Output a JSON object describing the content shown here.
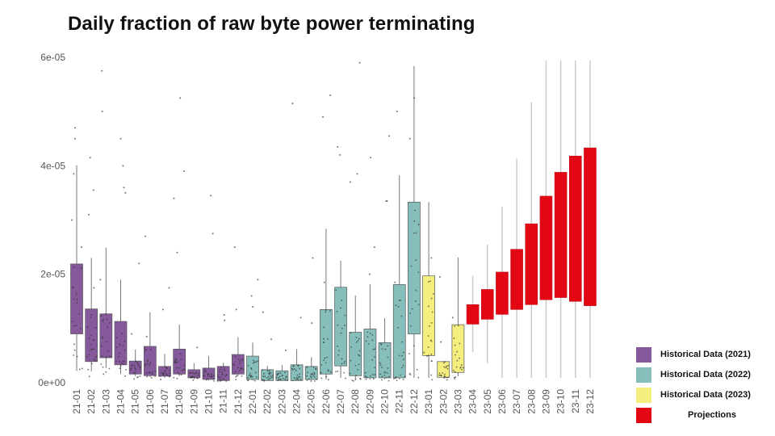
{
  "chart_data": {
    "type": "boxplot",
    "title": "Daily fraction of raw byte power terminating",
    "xlabel": "",
    "ylabel": "",
    "ylim": [
      0,
      6e-05
    ],
    "yticks": [
      {
        "value": 0,
        "label": "0e+00"
      },
      {
        "value": 2e-05,
        "label": "2e-05"
      },
      {
        "value": 4e-05,
        "label": "4e-05"
      },
      {
        "value": 6e-05,
        "label": "6e-05"
      }
    ],
    "grid": false,
    "legend_position": "bottom-right",
    "colors": {
      "h2021": "#85599b",
      "h2022": "#85bebb",
      "h2023": "#f4ee7e",
      "proj": "#e30613"
    },
    "legend": [
      {
        "key": "h2021",
        "label": "Historical Data (2021)"
      },
      {
        "key": "h2022",
        "label": "Historical Data (2022)"
      },
      {
        "key": "h2023",
        "label": "Historical Data (2023)"
      },
      {
        "key": "proj",
        "label": "Projections"
      }
    ],
    "categories": [
      "21-01",
      "21-02",
      "21-03",
      "21-04",
      "21-05",
      "21-06",
      "21-07",
      "21-08",
      "21-09",
      "21-10",
      "21-11",
      "21-12",
      "22-01",
      "22-02",
      "22-03",
      "22-04",
      "22-05",
      "22-06",
      "22-07",
      "22-08",
      "22-09",
      "22-10",
      "22-11",
      "22-12",
      "23-01",
      "23-02",
      "23-03",
      "23-04",
      "23-05",
      "23-06",
      "23-07",
      "23-08",
      "23-09",
      "23-10",
      "23-11",
      "23-12"
    ],
    "series": [
      {
        "category": "21-01",
        "group": "h2021",
        "low": 2.2e-06,
        "q1": 9e-06,
        "q3": 2.19e-05,
        "high": 4.01e-05,
        "outliers": [
          4.7e-05,
          4.5e-05,
          3e-05,
          2.5e-05,
          3.85e-05
        ]
      },
      {
        "category": "21-02",
        "group": "h2021",
        "low": 2.1e-06,
        "q1": 3.9e-06,
        "q3": 1.36e-05,
        "high": 2.3e-05,
        "outliers": [
          4.15e-05,
          3.55e-05,
          1.75e-05,
          3.1e-05
        ]
      },
      {
        "category": "21-03",
        "group": "h2021",
        "low": 2.7e-06,
        "q1": 4.6e-06,
        "q3": 1.27e-05,
        "high": 2.49e-05,
        "outliers": [
          5.75e-05,
          5e-05,
          1.9e-05
        ]
      },
      {
        "category": "21-04",
        "group": "h2021",
        "low": 1.6e-06,
        "q1": 3.3e-06,
        "q3": 1.13e-05,
        "high": 1.9e-05,
        "outliers": [
          4.5e-05,
          4e-05,
          3.6e-05,
          3.5e-05
        ]
      },
      {
        "category": "21-05",
        "group": "h2021",
        "low": 1.2e-06,
        "q1": 1.6e-06,
        "q3": 4e-06,
        "high": 6.1e-06,
        "outliers": [
          2.2e-05,
          9e-06
        ]
      },
      {
        "category": "21-06",
        "group": "h2021",
        "low": 1e-06,
        "q1": 1.3e-06,
        "q3": 6.7e-06,
        "high": 1.3e-05,
        "outliers": [
          2.7e-05,
          8.5e-06
        ]
      },
      {
        "category": "21-07",
        "group": "h2021",
        "low": 9e-07,
        "q1": 1.2e-06,
        "q3": 3e-06,
        "high": 5.3e-06,
        "outliers": [
          1.75e-05,
          1.35e-05
        ]
      },
      {
        "category": "21-08",
        "group": "h2021",
        "low": 1.2e-06,
        "q1": 1.6e-06,
        "q3": 6.2e-06,
        "high": 1.07e-05,
        "outliers": [
          5.25e-05,
          3.9e-05,
          3.4e-05,
          2.4e-05
        ]
      },
      {
        "category": "21-09",
        "group": "h2021",
        "low": 6e-07,
        "q1": 9e-07,
        "q3": 2.4e-06,
        "high": 3.6e-06,
        "outliers": [
          6.5e-06
        ]
      },
      {
        "category": "21-10",
        "group": "h2021",
        "low": 4e-07,
        "q1": 6e-07,
        "q3": 2.7e-06,
        "high": 4.9e-06,
        "outliers": [
          3.45e-05,
          2.75e-05
        ]
      },
      {
        "category": "21-11",
        "group": "h2021",
        "low": 4e-07,
        "q1": 4e-07,
        "q3": 3e-06,
        "high": 3.7e-06,
        "outliers": [
          1.25e-05,
          1.15e-05
        ]
      },
      {
        "category": "21-12",
        "group": "h2021",
        "low": 1.2e-06,
        "q1": 1.6e-06,
        "q3": 5.2e-06,
        "high": 8.4e-06,
        "outliers": [
          2.5e-05,
          1.35e-05
        ]
      },
      {
        "category": "22-01",
        "group": "h2022",
        "low": 4e-07,
        "q1": 6e-07,
        "q3": 4.9e-06,
        "high": 7.4e-06,
        "outliers": [
          1.9e-05,
          1.6e-05,
          1.4e-05
        ]
      },
      {
        "category": "22-02",
        "group": "h2022",
        "low": 4e-07,
        "q1": 4e-07,
        "q3": 2.4e-06,
        "high": 3.1e-06,
        "outliers": [
          1.3e-05,
          8e-06
        ]
      },
      {
        "category": "22-03",
        "group": "h2022",
        "low": 4e-07,
        "q1": 4e-07,
        "q3": 2.2e-06,
        "high": 3.3e-06,
        "outliers": [
          6e-06
        ]
      },
      {
        "category": "22-04",
        "group": "h2022",
        "low": 4e-07,
        "q1": 4e-07,
        "q3": 3.3e-06,
        "high": 6.2e-06,
        "outliers": [
          5.15e-05,
          1.2e-05
        ]
      },
      {
        "category": "22-05",
        "group": "h2022",
        "low": 4e-07,
        "q1": 6e-07,
        "q3": 3e-06,
        "high": 4.7e-06,
        "outliers": [
          2.3e-05,
          1.1e-05
        ]
      },
      {
        "category": "22-06",
        "group": "h2022",
        "low": 6e-07,
        "q1": 1.6e-06,
        "q3": 1.35e-05,
        "high": 2.84e-05,
        "outliers": [
          5.3e-05,
          4.9e-05,
          1.85e-05
        ]
      },
      {
        "category": "22-07",
        "group": "h2022",
        "low": 9e-07,
        "q1": 3.1e-06,
        "q3": 1.76e-05,
        "high": 2.25e-05,
        "outliers": [
          4.35e-05,
          4.2e-05
        ]
      },
      {
        "category": "22-08",
        "group": "h2022",
        "low": 6e-07,
        "q1": 1.3e-06,
        "q3": 9.3e-06,
        "high": 1.61e-05,
        "outliers": [
          5.9e-05,
          3.7e-05,
          3.85e-05
        ]
      },
      {
        "category": "22-09",
        "group": "h2022",
        "low": 6e-07,
        "q1": 9e-07,
        "q3": 9.9e-06,
        "high": 1.82e-05,
        "outliers": [
          4.15e-05,
          2.5e-05,
          2e-05
        ]
      },
      {
        "category": "22-10",
        "group": "h2022",
        "low": 6e-07,
        "q1": 9e-07,
        "q3": 7.4e-06,
        "high": 1.19e-05,
        "outliers": [
          4.55e-05,
          3.35e-05,
          3.35e-05
        ]
      },
      {
        "category": "22-11",
        "group": "h2022",
        "low": 6e-07,
        "q1": 9e-07,
        "q3": 1.81e-05,
        "high": 3.82e-05,
        "outliers": [
          5e-05,
          1.85e-05
        ]
      },
      {
        "category": "22-12",
        "group": "h2022",
        "low": 9e-07,
        "q1": 9e-06,
        "q3": 3.33e-05,
        "high": 5.84e-05,
        "outliers": [
          5.25e-05,
          4.5e-05
        ]
      },
      {
        "category": "23-01",
        "group": "h2023",
        "low": 9e-07,
        "q1": 5e-06,
        "q3": 1.97e-05,
        "high": 3.33e-05,
        "outliers": [
          2.3e-05
        ]
      },
      {
        "category": "23-02",
        "group": "h2023",
        "low": 1e-06,
        "q1": 1e-06,
        "q3": 3.9e-06,
        "high": 3.9e-06,
        "outliers": [
          1.95e-05,
          7.5e-06
        ]
      },
      {
        "category": "23-03",
        "group": "h2023",
        "low": 1.2e-06,
        "q1": 1.9e-06,
        "q3": 1.07e-05,
        "high": 2.31e-05,
        "outliers": [
          1.2e-05
        ]
      },
      {
        "category": "23-04",
        "group": "proj",
        "low": 5.6e-06,
        "q1": 1.08e-05,
        "q3": 1.44e-05,
        "high": 1.97e-05,
        "outliers": []
      },
      {
        "category": "23-05",
        "group": "proj",
        "low": 3.6e-06,
        "q1": 1.17e-05,
        "q3": 1.72e-05,
        "high": 2.55e-05,
        "outliers": []
      },
      {
        "category": "23-06",
        "group": "proj",
        "low": 9e-07,
        "q1": 1.26e-05,
        "q3": 2.04e-05,
        "high": 3.24e-05,
        "outliers": []
      },
      {
        "category": "23-07",
        "group": "proj",
        "low": 9e-07,
        "q1": 1.35e-05,
        "q3": 2.46e-05,
        "high": 4.13e-05,
        "outliers": []
      },
      {
        "category": "23-08",
        "group": "proj",
        "low": 9e-07,
        "q1": 1.44e-05,
        "q3": 2.93e-05,
        "high": 5.17e-05,
        "outliers": []
      },
      {
        "category": "23-09",
        "group": "proj",
        "low": 9e-07,
        "q1": 1.53e-05,
        "q3": 3.44e-05,
        "high": 5.94e-05,
        "outliers": []
      },
      {
        "category": "23-10",
        "group": "proj",
        "low": 9e-07,
        "q1": 1.57e-05,
        "q3": 3.88e-05,
        "high": 5.94e-05,
        "outliers": []
      },
      {
        "category": "23-11",
        "group": "proj",
        "low": 9e-07,
        "q1": 1.5e-05,
        "q3": 4.18e-05,
        "high": 5.94e-05,
        "outliers": []
      },
      {
        "category": "23-12",
        "group": "proj",
        "low": 9e-07,
        "q1": 1.42e-05,
        "q3": 4.33e-05,
        "high": 5.94e-05,
        "outliers": []
      }
    ]
  }
}
